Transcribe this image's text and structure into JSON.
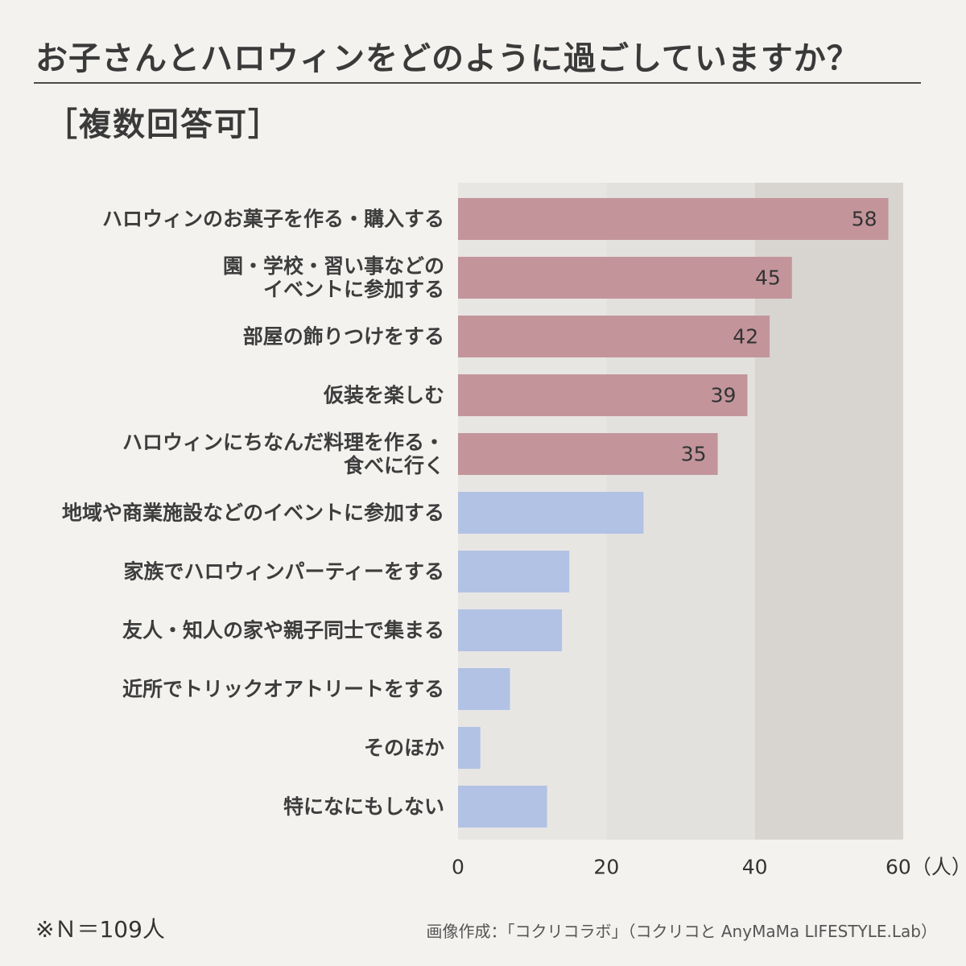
{
  "title": "お子さんとハロウィンをどのように過ごしていますか？",
  "subtitle": "［複数回答可］",
  "colors": {
    "highlight": "#c3959b",
    "normal": "#b2c2e4",
    "band1": "#e8e6e3",
    "band2": "#e3e1dd",
    "band3": "#d8d5d1"
  },
  "chart_data": {
    "type": "bar",
    "orientation": "horizontal",
    "categories": [
      [
        "ハロウィンのお菓子を作る・購入する"
      ],
      [
        "園・学校・習い事などの",
        "イベントに参加する"
      ],
      [
        "部屋の飾りつけをする"
      ],
      [
        "仮装を楽しむ"
      ],
      [
        "ハロウィンにちなんだ料理を作る・",
        "食べに行く"
      ],
      [
        "地域や商業施設などのイベントに参加する"
      ],
      [
        "家族でハロウィンパーティーをする"
      ],
      [
        "友人・知人の家や親子同士で集まる"
      ],
      [
        "近所でトリックオアトリートをする"
      ],
      [
        "そのほか"
      ],
      [
        "特になにもしない"
      ]
    ],
    "values": [
      58,
      45,
      42,
      39,
      35,
      25,
      15,
      14,
      7,
      3,
      12
    ],
    "value_labels": [
      "58",
      "45",
      "42",
      "39",
      "35",
      "",
      "",
      "",
      "",
      "",
      ""
    ],
    "highlighted": [
      true,
      true,
      true,
      true,
      true,
      false,
      false,
      false,
      false,
      false,
      false
    ],
    "xlim": [
      0,
      60
    ],
    "xticks": [
      "0",
      "20",
      "40",
      "60（人）"
    ],
    "grid": false
  },
  "footer": {
    "note": "※Ｎ＝109人",
    "credit": "画像作成：「コクリコラボ」（コクリコと AnyMaMa LIFESTYLE.Lab）"
  }
}
